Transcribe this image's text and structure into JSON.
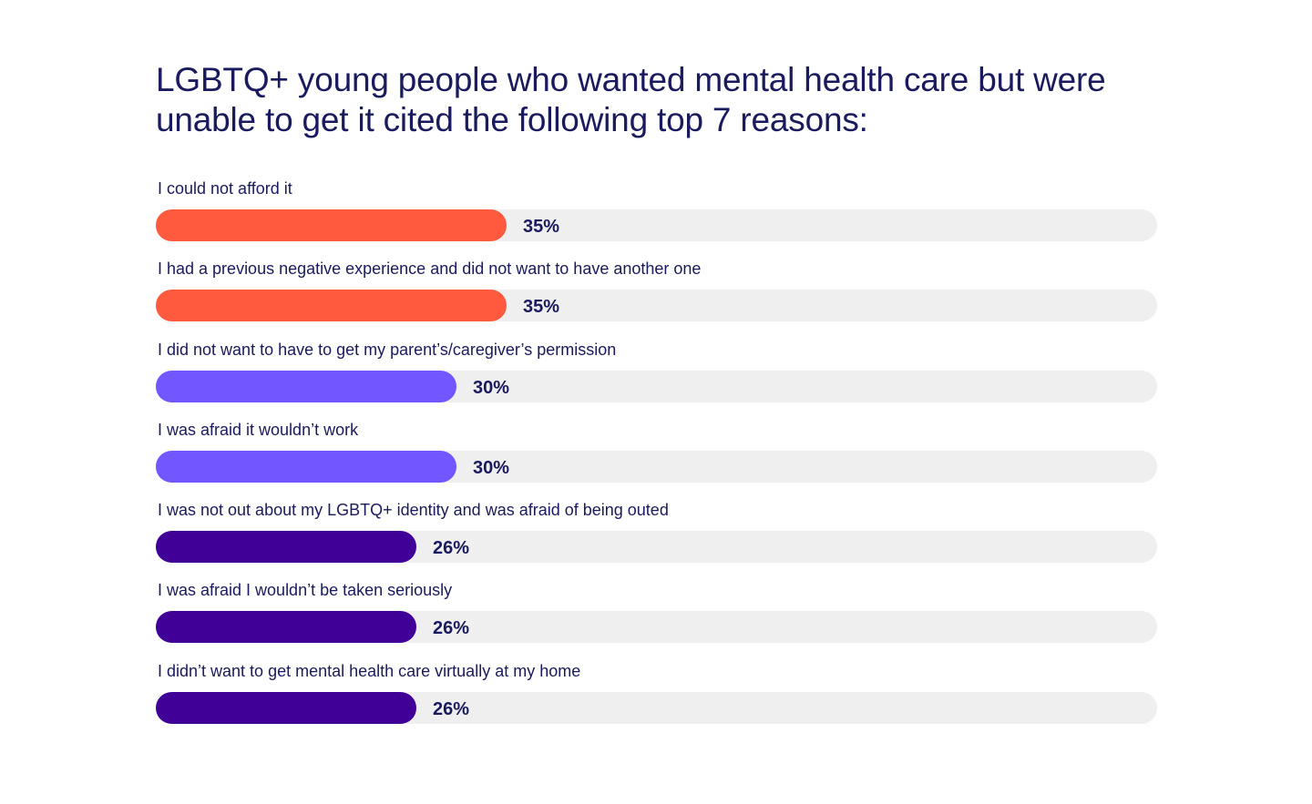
{
  "chart_data": {
    "type": "bar",
    "orientation": "horizontal",
    "title": "LGBTQ+ young people who wanted mental health care but were unable to get it cited the following top 7 reasons:",
    "xlim": [
      0,
      100
    ],
    "unit": "%",
    "categories": [
      "I could not afford it",
      "I had a previous negative experience and did not want to have another one",
      "I did not want to have to get my parent’s/caregiver’s permission",
      "I was afraid it wouldn’t work",
      "I was not out about my LGBTQ+ identity and was afraid of being outed",
      "I was afraid I wouldn’t be taken seriously",
      "I didn’t want to get mental health care virtually at my home"
    ],
    "values": [
      35,
      35,
      30,
      30,
      26,
      26,
      26
    ],
    "value_labels": [
      "35%",
      "35%",
      "30%",
      "30%",
      "26%",
      "26%",
      "26%"
    ],
    "bar_colors": [
      "#ff5a3d",
      "#ff5a3d",
      "#7256ff",
      "#7256ff",
      "#400097",
      "#400097",
      "#400097"
    ],
    "track_color": "#efefef"
  }
}
